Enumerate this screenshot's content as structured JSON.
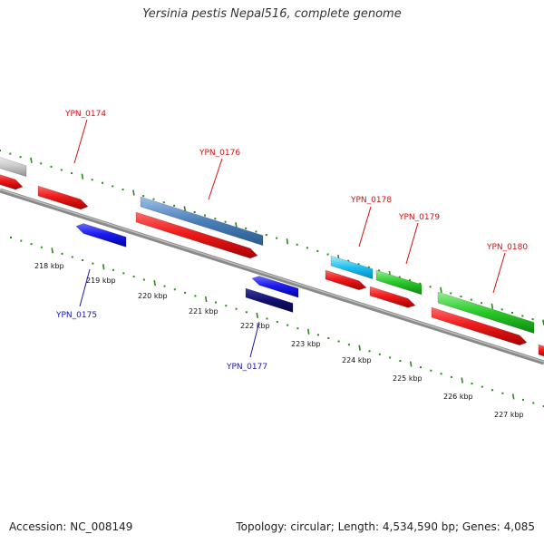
{
  "header": {
    "title": "Yersinia pestis Nepal516, complete genome"
  },
  "footer": {
    "accession": "Accession: NC_008149",
    "summary": "Topology: circular; Length: 4,534,590 bp; Genes: 4,085"
  },
  "genome_map": {
    "colors": {
      "backbone": "#8a8a8a",
      "tick": "#2a8a1a",
      "forward_cds": "#ee1c1c",
      "reverse_cds": "#1c1cee",
      "label_forward": "#d01010",
      "label_reverse": "#1818a8"
    },
    "kbp_ticks": [
      "218 kbp",
      "219 kbp",
      "220 kbp",
      "221 kbp",
      "222 kbp",
      "223 kbp",
      "224 kbp",
      "225 kbp",
      "226 kbp",
      "227 kbp"
    ],
    "gene_labels": [
      {
        "name": "YPN_0174",
        "strand": "forward"
      },
      {
        "name": "YPN_0175",
        "strand": "reverse"
      },
      {
        "name": "YPN_0176",
        "strand": "forward"
      },
      {
        "name": "YPN_0177",
        "strand": "reverse"
      },
      {
        "name": "YPN_0178",
        "strand": "forward"
      },
      {
        "name": "YPN_0179",
        "strand": "forward"
      },
      {
        "name": "YPN_0180",
        "strand": "forward"
      }
    ]
  }
}
